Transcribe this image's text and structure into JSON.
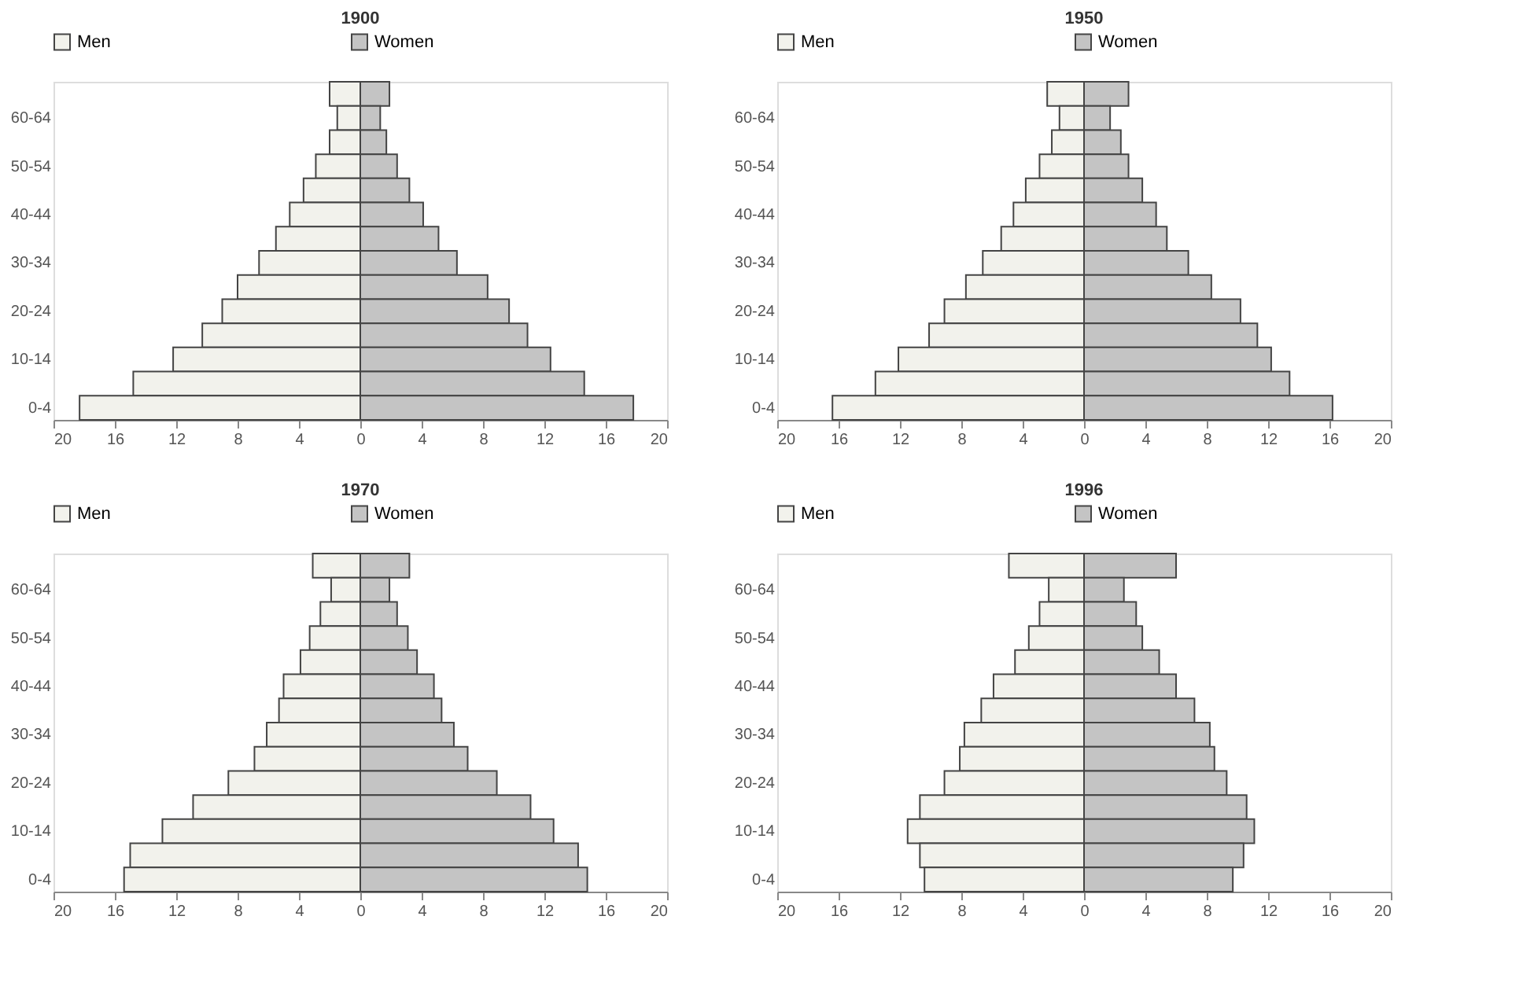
{
  "chart_data": [
    {
      "type": "bar",
      "orientation": "horizontal",
      "stacked": true,
      "title": "1900",
      "categories": [
        null,
        "60-64",
        null,
        "50-54",
        null,
        "40-44",
        null,
        "30-34",
        null,
        "20-24",
        null,
        "10-14",
        null,
        "0-4"
      ],
      "series": [
        {
          "name": "Men",
          "color": "#f2f2ec",
          "values": [
            -2.0,
            -1.5,
            -2.0,
            -2.9,
            -3.7,
            -4.6,
            -5.5,
            -6.6,
            -8.0,
            -9.0,
            -10.3,
            -12.2,
            -14.8,
            -18.3
          ]
        },
        {
          "name": "Women",
          "color": "#c4c4c4",
          "values": [
            1.9,
            1.3,
            1.7,
            2.4,
            3.2,
            4.1,
            5.1,
            6.3,
            8.3,
            9.7,
            10.9,
            12.4,
            14.6,
            17.8
          ]
        }
      ],
      "xlim": [
        -20,
        20
      ],
      "xticks": [
        {
          "value": -20,
          "label": "20"
        },
        {
          "value": -16,
          "label": "16"
        },
        {
          "value": -12,
          "label": "12"
        },
        {
          "value": -8,
          "label": "8"
        },
        {
          "value": -4,
          "label": "4"
        },
        0,
        4,
        8,
        12,
        16,
        20
      ],
      "grid": false,
      "legend": "top"
    },
    {
      "type": "bar",
      "orientation": "horizontal",
      "stacked": true,
      "title": "1950",
      "categories": [
        null,
        "60-64",
        null,
        "50-54",
        null,
        "40-44",
        null,
        "30-34",
        null,
        "20-24",
        null,
        "10-14",
        null,
        "0-4"
      ],
      "series": [
        {
          "name": "Men",
          "color": "#f2f2ec",
          "values": [
            -2.4,
            -1.6,
            -2.1,
            -2.9,
            -3.8,
            -4.6,
            -5.4,
            -6.6,
            -7.7,
            -9.1,
            -10.1,
            -12.1,
            -13.6,
            -16.4
          ]
        },
        {
          "name": "Women",
          "color": "#c4c4c4",
          "values": [
            2.9,
            1.7,
            2.4,
            2.9,
            3.8,
            4.7,
            5.4,
            6.8,
            8.3,
            10.2,
            11.3,
            12.2,
            13.4,
            16.2
          ]
        }
      ],
      "xlim": [
        -20,
        20
      ],
      "xticks": [
        {
          "value": -20,
          "label": "20"
        },
        {
          "value": -16,
          "label": "16"
        },
        {
          "value": -12,
          "label": "12"
        },
        {
          "value": -8,
          "label": "8"
        },
        {
          "value": -4,
          "label": "4"
        },
        0,
        4,
        8,
        12,
        16,
        20
      ],
      "grid": false,
      "legend": "top"
    },
    {
      "type": "bar",
      "orientation": "horizontal",
      "stacked": true,
      "title": "1970",
      "categories": [
        null,
        "60-64",
        null,
        "50-54",
        null,
        "40-44",
        null,
        "30-34",
        null,
        "20-24",
        null,
        "10-14",
        null,
        "0-4"
      ],
      "series": [
        {
          "name": "Men",
          "color": "#f2f2ec",
          "values": [
            -3.1,
            -1.9,
            -2.6,
            -3.3,
            -3.9,
            -5.0,
            -5.3,
            -6.1,
            -6.9,
            -8.6,
            -10.9,
            -12.9,
            -15.0,
            -15.4
          ]
        },
        {
          "name": "Women",
          "color": "#c4c4c4",
          "values": [
            3.2,
            1.9,
            2.4,
            3.1,
            3.7,
            4.8,
            5.3,
            6.1,
            7.0,
            8.9,
            11.1,
            12.6,
            14.2,
            14.8
          ]
        }
      ],
      "xlim": [
        -20,
        20
      ],
      "xticks": [
        {
          "value": -20,
          "label": "20"
        },
        {
          "value": -16,
          "label": "16"
        },
        {
          "value": -12,
          "label": "12"
        },
        {
          "value": -8,
          "label": "8"
        },
        {
          "value": -4,
          "label": "4"
        },
        0,
        4,
        8,
        12,
        16,
        20
      ],
      "grid": false,
      "legend": "top"
    },
    {
      "type": "bar",
      "orientation": "horizontal",
      "stacked": true,
      "title": "1996",
      "categories": [
        null,
        "60-64",
        null,
        "50-54",
        null,
        "40-44",
        null,
        "30-34",
        null,
        "20-24",
        null,
        "10-14",
        null,
        "0-4"
      ],
      "series": [
        {
          "name": "Men",
          "color": "#f2f2ec",
          "values": [
            -4.9,
            -2.3,
            -2.9,
            -3.6,
            -4.5,
            -5.9,
            -6.7,
            -7.8,
            -8.1,
            -9.1,
            -10.7,
            -11.5,
            -10.7,
            -10.4
          ]
        },
        {
          "name": "Women",
          "color": "#c4c4c4",
          "values": [
            6.0,
            2.6,
            3.4,
            3.8,
            4.9,
            6.0,
            7.2,
            8.2,
            8.5,
            9.3,
            10.6,
            11.1,
            10.4,
            9.7
          ]
        }
      ],
      "xlim": [
        -20,
        20
      ],
      "xticks": [
        {
          "value": -20,
          "label": "20"
        },
        {
          "value": -16,
          "label": "16"
        },
        {
          "value": -12,
          "label": "12"
        },
        {
          "value": -8,
          "label": "8"
        },
        {
          "value": -4,
          "label": "4"
        },
        0,
        4,
        8,
        12,
        16,
        20
      ],
      "grid": false,
      "legend": "top"
    }
  ]
}
